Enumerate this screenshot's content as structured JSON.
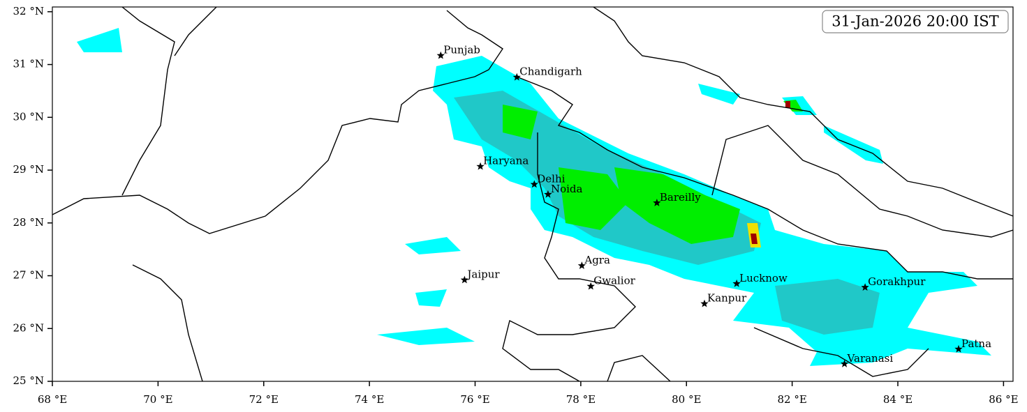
{
  "map": {
    "title": "31-Jan-2026 20:00 IST",
    "xlim": [
      68,
      86.18
    ],
    "ylim": [
      25,
      32.09
    ],
    "xticks": [
      {
        "value": 68,
        "label": "68 °E"
      },
      {
        "value": 70,
        "label": "70 °E"
      },
      {
        "value": 72,
        "label": "72 °E"
      },
      {
        "value": 74,
        "label": "74 °E"
      },
      {
        "value": 76,
        "label": "76 °E"
      },
      {
        "value": 78,
        "label": "78 °E"
      },
      {
        "value": 80,
        "label": "80 °E"
      },
      {
        "value": 82,
        "label": "82 °E"
      },
      {
        "value": 84,
        "label": "84 °E"
      },
      {
        "value": 86,
        "label": "86 °E"
      }
    ],
    "yticks": [
      {
        "value": 25,
        "label": "25 °N"
      },
      {
        "value": 26,
        "label": "26 °N"
      },
      {
        "value": 27,
        "label": "27 °N"
      },
      {
        "value": 28,
        "label": "28 °N"
      },
      {
        "value": 29,
        "label": "29 °N"
      },
      {
        "value": 30,
        "label": "30 °N"
      },
      {
        "value": 31,
        "label": "31 °N"
      },
      {
        "value": 32,
        "label": "32 °N"
      }
    ],
    "cities": [
      {
        "name": "Punjab",
        "lon": 75.35,
        "lat": 31.17
      },
      {
        "name": "Chandigarh",
        "lon": 76.79,
        "lat": 30.76
      },
      {
        "name": "Haryana",
        "lon": 76.1,
        "lat": 29.07
      },
      {
        "name": "Delhi",
        "lon": 77.12,
        "lat": 28.73
      },
      {
        "name": "Noida",
        "lon": 77.38,
        "lat": 28.54
      },
      {
        "name": "Bareilly",
        "lon": 79.44,
        "lat": 28.38
      },
      {
        "name": "Agra",
        "lon": 78.02,
        "lat": 27.19
      },
      {
        "name": "Jaipur",
        "lon": 75.8,
        "lat": 26.92
      },
      {
        "name": "Gwalior",
        "lon": 78.19,
        "lat": 26.8
      },
      {
        "name": "Lucknow",
        "lon": 80.95,
        "lat": 26.85
      },
      {
        "name": "Kanpur",
        "lon": 80.34,
        "lat": 26.47
      },
      {
        "name": "Gorakhpur",
        "lon": 83.38,
        "lat": 26.78
      },
      {
        "name": "Varanasi",
        "lon": 82.99,
        "lat": 25.33
      },
      {
        "name": "Patna",
        "lon": 85.15,
        "lat": 25.61
      }
    ]
  }
}
